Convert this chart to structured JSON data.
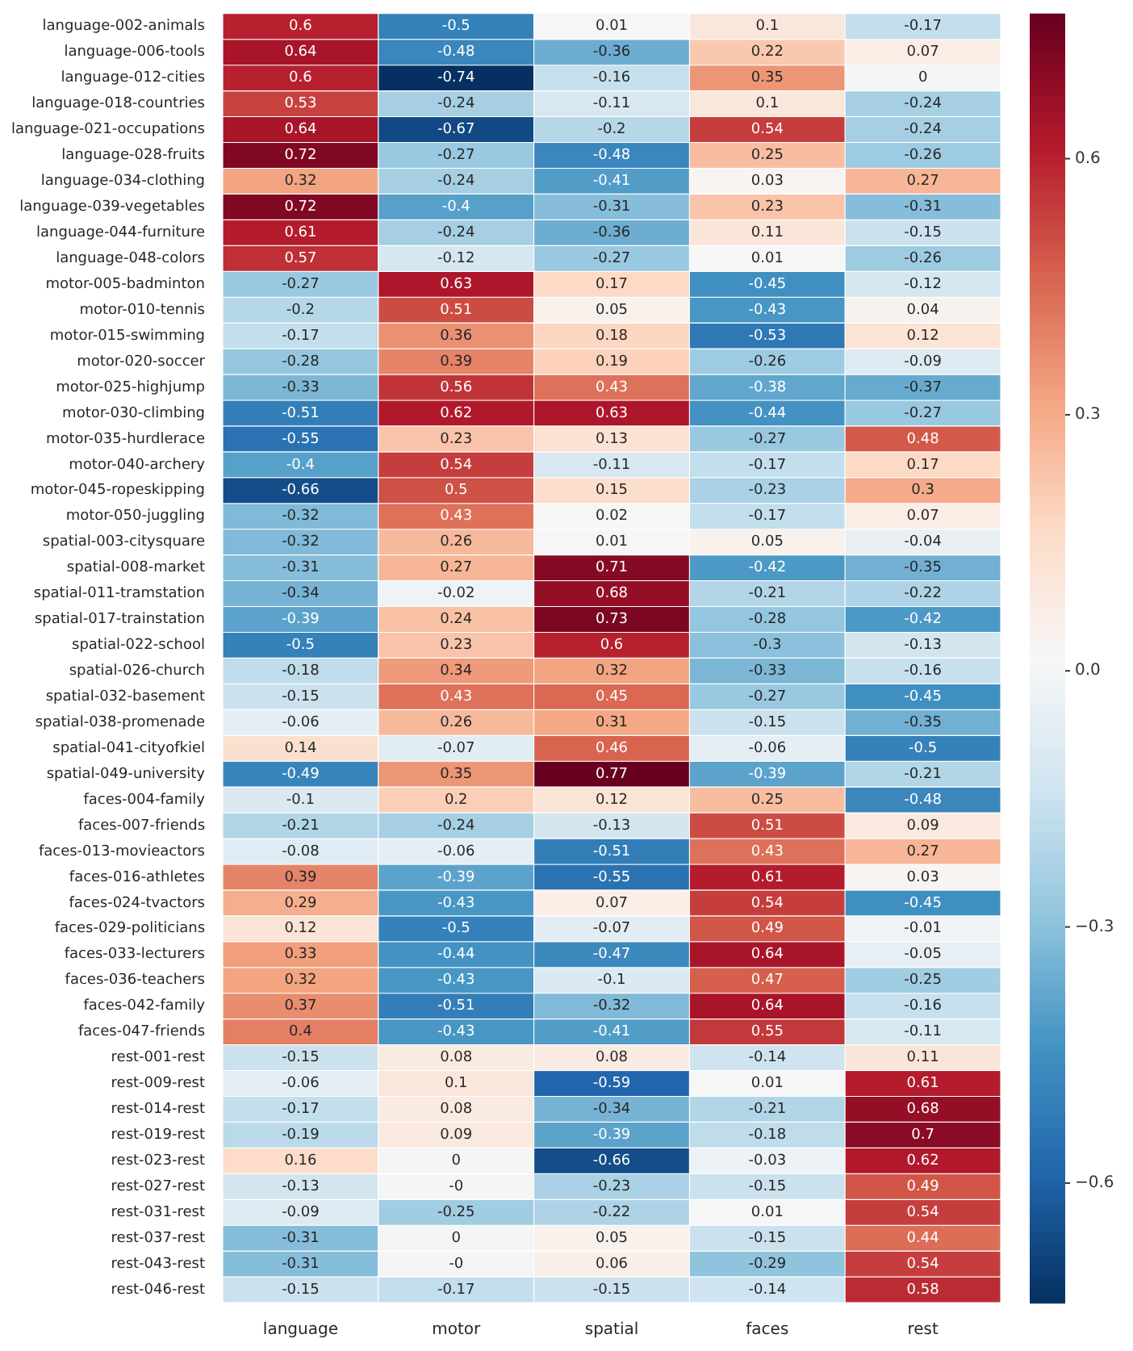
{
  "chart_data": {
    "type": "heatmap",
    "categories": [
      "language",
      "motor",
      "spatial",
      "faces",
      "rest"
    ],
    "y_categories": [
      "language-002-animals",
      "language-006-tools",
      "language-012-cities",
      "language-018-countries",
      "language-021-occupations",
      "language-028-fruits",
      "language-034-clothing",
      "language-039-vegetables",
      "language-044-furniture",
      "language-048-colors",
      "motor-005-badminton",
      "motor-010-tennis",
      "motor-015-swimming",
      "motor-020-soccer",
      "motor-025-highjump",
      "motor-030-climbing",
      "motor-035-hurdlerace",
      "motor-040-archery",
      "motor-045-ropeskipping",
      "motor-050-juggling",
      "spatial-003-citysquare",
      "spatial-008-market",
      "spatial-011-tramstation",
      "spatial-017-trainstation",
      "spatial-022-school",
      "spatial-026-church",
      "spatial-032-basement",
      "spatial-038-promenade",
      "spatial-041-cityofkiel",
      "spatial-049-university",
      "faces-004-family",
      "faces-007-friends",
      "faces-013-movieactors",
      "faces-016-athletes",
      "faces-024-tvactors",
      "faces-029-politicians",
      "faces-033-lecturers",
      "faces-036-teachers",
      "faces-042-family",
      "faces-047-friends",
      "rest-001-rest",
      "rest-009-rest",
      "rest-014-rest",
      "rest-019-rest",
      "rest-023-rest",
      "rest-027-rest",
      "rest-031-rest",
      "rest-037-rest",
      "rest-043-rest",
      "rest-046-rest"
    ],
    "cells": [
      [
        0.6,
        -0.5,
        0.01,
        0.1,
        -0.17
      ],
      [
        0.64,
        -0.48,
        -0.36,
        0.22,
        0.07
      ],
      [
        0.6,
        -0.74,
        -0.16,
        0.35,
        0
      ],
      [
        0.53,
        -0.24,
        -0.11,
        0.1,
        -0.24
      ],
      [
        0.64,
        -0.67,
        -0.2,
        0.54,
        -0.24
      ],
      [
        0.72,
        -0.27,
        -0.48,
        0.25,
        -0.26
      ],
      [
        0.32,
        -0.24,
        -0.41,
        0.03,
        0.27
      ],
      [
        0.72,
        -0.4,
        -0.31,
        0.23,
        -0.31
      ],
      [
        0.61,
        -0.24,
        -0.36,
        0.11,
        -0.15
      ],
      [
        0.57,
        -0.12,
        -0.27,
        0.01,
        -0.26
      ],
      [
        -0.27,
        0.63,
        0.17,
        -0.45,
        -0.12
      ],
      [
        -0.2,
        0.51,
        0.05,
        -0.43,
        0.04
      ],
      [
        -0.17,
        0.36,
        0.18,
        -0.53,
        0.12
      ],
      [
        -0.28,
        0.39,
        0.19,
        -0.26,
        -0.09
      ],
      [
        -0.33,
        0.56,
        0.43,
        -0.38,
        -0.37
      ],
      [
        -0.51,
        0.62,
        0.63,
        -0.44,
        -0.27
      ],
      [
        -0.55,
        0.23,
        0.13,
        -0.27,
        0.48
      ],
      [
        -0.4,
        0.54,
        -0.11,
        -0.17,
        0.17
      ],
      [
        -0.66,
        0.5,
        0.15,
        -0.23,
        0.3
      ],
      [
        -0.32,
        0.43,
        0.02,
        -0.17,
        0.07
      ],
      [
        -0.32,
        0.26,
        0.01,
        0.05,
        -0.04
      ],
      [
        -0.31,
        0.27,
        0.71,
        -0.42,
        -0.35
      ],
      [
        -0.34,
        -0.02,
        0.68,
        -0.21,
        -0.22
      ],
      [
        -0.39,
        0.24,
        0.73,
        -0.28,
        -0.42
      ],
      [
        -0.5,
        0.23,
        0.6,
        -0.3,
        -0.13
      ],
      [
        -0.18,
        0.34,
        0.32,
        -0.33,
        -0.16
      ],
      [
        -0.15,
        0.43,
        0.45,
        -0.27,
        -0.45
      ],
      [
        -0.06,
        0.26,
        0.31,
        -0.15,
        -0.35
      ],
      [
        0.14,
        -0.07,
        0.46,
        -0.06,
        -0.5
      ],
      [
        -0.49,
        0.35,
        0.77,
        -0.39,
        -0.21
      ],
      [
        -0.1,
        0.2,
        0.12,
        0.25,
        -0.48
      ],
      [
        -0.21,
        -0.24,
        -0.13,
        0.51,
        0.09
      ],
      [
        -0.08,
        -0.06,
        -0.51,
        0.43,
        0.27
      ],
      [
        0.39,
        -0.39,
        -0.55,
        0.61,
        0.03
      ],
      [
        0.29,
        -0.43,
        0.07,
        0.54,
        -0.45
      ],
      [
        0.12,
        -0.5,
        -0.07,
        0.49,
        -0.01
      ],
      [
        0.33,
        -0.44,
        -0.47,
        0.64,
        -0.05
      ],
      [
        0.32,
        -0.43,
        -0.1,
        0.47,
        -0.25
      ],
      [
        0.37,
        -0.51,
        -0.32,
        0.64,
        -0.16
      ],
      [
        0.4,
        -0.43,
        -0.41,
        0.55,
        -0.11
      ],
      [
        -0.15,
        0.08,
        0.08,
        -0.14,
        0.11
      ],
      [
        -0.06,
        0.1,
        -0.59,
        0.01,
        0.61
      ],
      [
        -0.17,
        0.08,
        -0.34,
        -0.21,
        0.68
      ],
      [
        -0.19,
        0.09,
        -0.39,
        -0.18,
        0.7
      ],
      [
        0.16,
        0,
        -0.66,
        -0.03,
        0.62
      ],
      [
        -0.13,
        0,
        -0.23,
        -0.15,
        0.49
      ],
      [
        -0.09,
        -0.25,
        -0.22,
        0.01,
        0.54
      ],
      [
        -0.31,
        0,
        0.05,
        -0.15,
        0.44
      ],
      [
        -0.31,
        0,
        0.06,
        -0.29,
        0.54
      ],
      [
        -0.15,
        -0.17,
        -0.15,
        -0.14,
        0.58
      ]
    ],
    "cell_labels": [
      [
        "0.6",
        "-0.5",
        "0.01",
        "0.1",
        "-0.17"
      ],
      [
        "0.64",
        "-0.48",
        "-0.36",
        "0.22",
        "0.07"
      ],
      [
        "0.6",
        "-0.74",
        "-0.16",
        "0.35",
        "0"
      ],
      [
        "0.53",
        "-0.24",
        "-0.11",
        "0.1",
        "-0.24"
      ],
      [
        "0.64",
        "-0.67",
        "-0.2",
        "0.54",
        "-0.24"
      ],
      [
        "0.72",
        "-0.27",
        "-0.48",
        "0.25",
        "-0.26"
      ],
      [
        "0.32",
        "-0.24",
        "-0.41",
        "0.03",
        "0.27"
      ],
      [
        "0.72",
        "-0.4",
        "-0.31",
        "0.23",
        "-0.31"
      ],
      [
        "0.61",
        "-0.24",
        "-0.36",
        "0.11",
        "-0.15"
      ],
      [
        "0.57",
        "-0.12",
        "-0.27",
        "0.01",
        "-0.26"
      ],
      [
        "-0.27",
        "0.63",
        "0.17",
        "-0.45",
        "-0.12"
      ],
      [
        "-0.2",
        "0.51",
        "0.05",
        "-0.43",
        "0.04"
      ],
      [
        "-0.17",
        "0.36",
        "0.18",
        "-0.53",
        "0.12"
      ],
      [
        "-0.28",
        "0.39",
        "0.19",
        "-0.26",
        "-0.09"
      ],
      [
        "-0.33",
        "0.56",
        "0.43",
        "-0.38",
        "-0.37"
      ],
      [
        "-0.51",
        "0.62",
        "0.63",
        "-0.44",
        "-0.27"
      ],
      [
        "-0.55",
        "0.23",
        "0.13",
        "-0.27",
        "0.48"
      ],
      [
        "-0.4",
        "0.54",
        "-0.11",
        "-0.17",
        "0.17"
      ],
      [
        "-0.66",
        "0.5",
        "0.15",
        "-0.23",
        "0.3"
      ],
      [
        "-0.32",
        "0.43",
        "0.02",
        "-0.17",
        "0.07"
      ],
      [
        "-0.32",
        "0.26",
        "0.01",
        "0.05",
        "-0.04"
      ],
      [
        "-0.31",
        "0.27",
        "0.71",
        "-0.42",
        "-0.35"
      ],
      [
        "-0.34",
        "-0.02",
        "0.68",
        "-0.21",
        "-0.22"
      ],
      [
        "-0.39",
        "0.24",
        "0.73",
        "-0.28",
        "-0.42"
      ],
      [
        "-0.5",
        "0.23",
        "0.6",
        "-0.3",
        "-0.13"
      ],
      [
        "-0.18",
        "0.34",
        "0.32",
        "-0.33",
        "-0.16"
      ],
      [
        "-0.15",
        "0.43",
        "0.45",
        "-0.27",
        "-0.45"
      ],
      [
        "-0.06",
        "0.26",
        "0.31",
        "-0.15",
        "-0.35"
      ],
      [
        "0.14",
        "-0.07",
        "0.46",
        "-0.06",
        "-0.5"
      ],
      [
        "-0.49",
        "0.35",
        "0.77",
        "-0.39",
        "-0.21"
      ],
      [
        "-0.1",
        "0.2",
        "0.12",
        "0.25",
        "-0.48"
      ],
      [
        "-0.21",
        "-0.24",
        "-0.13",
        "0.51",
        "0.09"
      ],
      [
        "-0.08",
        "-0.06",
        "-0.51",
        "0.43",
        "0.27"
      ],
      [
        "0.39",
        "-0.39",
        "-0.55",
        "0.61",
        "0.03"
      ],
      [
        "0.29",
        "-0.43",
        "0.07",
        "0.54",
        "-0.45"
      ],
      [
        "0.12",
        "-0.5",
        "-0.07",
        "0.49",
        "-0.01"
      ],
      [
        "0.33",
        "-0.44",
        "-0.47",
        "0.64",
        "-0.05"
      ],
      [
        "0.32",
        "-0.43",
        "-0.1",
        "0.47",
        "-0.25"
      ],
      [
        "0.37",
        "-0.51",
        "-0.32",
        "0.64",
        "-0.16"
      ],
      [
        "0.4",
        "-0.43",
        "-0.41",
        "0.55",
        "-0.11"
      ],
      [
        "-0.15",
        "0.08",
        "0.08",
        "-0.14",
        "0.11"
      ],
      [
        "-0.06",
        "0.1",
        "-0.59",
        "0.01",
        "0.61"
      ],
      [
        "-0.17",
        "0.08",
        "-0.34",
        "-0.21",
        "0.68"
      ],
      [
        "-0.19",
        "0.09",
        "-0.39",
        "-0.18",
        "0.7"
      ],
      [
        "0.16",
        "0",
        "-0.66",
        "-0.03",
        "0.62"
      ],
      [
        "-0.13",
        "-0",
        "-0.23",
        "-0.15",
        "0.49"
      ],
      [
        "-0.09",
        "-0.25",
        "-0.22",
        "0.01",
        "0.54"
      ],
      [
        "-0.31",
        "0",
        "0.05",
        "-0.15",
        "0.44"
      ],
      [
        "-0.31",
        "-0",
        "0.06",
        "-0.29",
        "0.54"
      ],
      [
        "-0.15",
        "-0.17",
        "-0.15",
        "-0.14",
        "0.58"
      ]
    ],
    "clim": [
      -0.74,
      0.77
    ],
    "cticks": [
      {
        "value": -0.6,
        "label": "−0.6"
      },
      {
        "value": -0.3,
        "label": "−0.3"
      },
      {
        "value": 0,
        "label": "0.0"
      },
      {
        "value": 0.3,
        "label": "0.3"
      },
      {
        "value": 0.6,
        "label": "0.6"
      }
    ]
  }
}
